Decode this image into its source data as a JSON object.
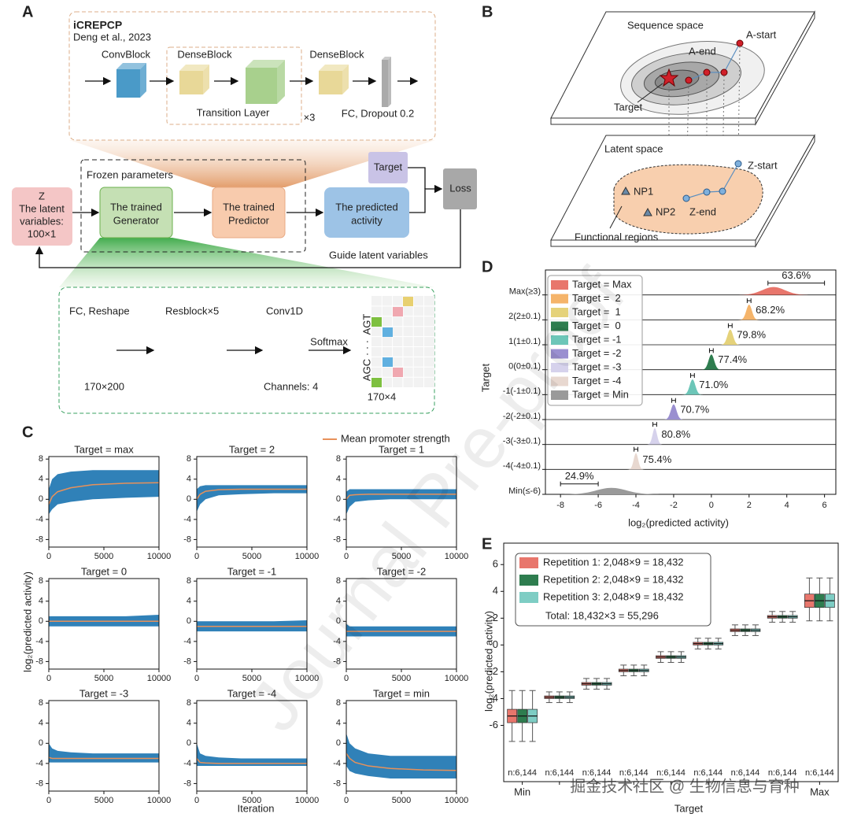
{
  "panel_a": {
    "label": "A",
    "icrepcp": {
      "title": "iCREPCP",
      "citation": "Deng et al., 2023",
      "convblock": "ConvBlock",
      "denseblock_1": "DenseBlock",
      "denseblock_2": "DenseBlock",
      "transition": "Transition Layer",
      "repeat": "×3",
      "fc": "FC, Dropout 0.2"
    },
    "frozen": "Frozen parameters",
    "z": [
      "Z",
      "The latent",
      "variables:",
      "100×1"
    ],
    "generator": [
      "The trained",
      "Generator"
    ],
    "predictor": [
      "The trained",
      "Predictor"
    ],
    "activity": [
      "The predicted",
      "activity"
    ],
    "target": "Target",
    "loss": "Loss",
    "guide": "Guide latent variables",
    "generator_detail": {
      "fc": "FC, Reshape",
      "resblock": "Resblock×5",
      "conv": "Conv1D",
      "softmax": "Softmax",
      "dim_in": "170×200",
      "channels": "Channels: 4",
      "dim_out": "170×4",
      "seq_top": "AGT",
      "seq_bottom": "AGC",
      "ellipsis": "· · ·"
    }
  },
  "panel_b": {
    "label": "B",
    "sequence_space": "Sequence space",
    "a_start": "A-start",
    "a_end": "A-end",
    "target": "Target",
    "latent_space": "Latent space",
    "z_start": "Z-start",
    "z_end": "Z-end",
    "np1": "NP1",
    "np2": "NP2",
    "functional": "Functional regions"
  },
  "panel_c": {
    "label": "C",
    "legend": "Mean promoter strength",
    "mean_color": "#e8915a",
    "band_color": "#1a73b0",
    "ylabel": "log₂(predicted activity)",
    "xlabel": "Iteration",
    "xlim": [
      0,
      10000
    ],
    "xticks": [
      0,
      5000,
      10000
    ],
    "ylim": [
      -9.5,
      8.5
    ],
    "yticks": [
      8,
      4,
      0,
      -4,
      -8
    ],
    "x": [
      0,
      300,
      800,
      2000,
      4000,
      7000,
      10000
    ],
    "charts": [
      {
        "type": "line",
        "title": "Target = max",
        "mean": [
          -1,
          0.5,
          1.5,
          2.3,
          2.9,
          3.2,
          3.3
        ],
        "upper": [
          2,
          4,
          5,
          5.5,
          5.8,
          5.8,
          5.8
        ],
        "lower": [
          -3,
          -2,
          -1,
          -0.5,
          0,
          0.3,
          0.5
        ]
      },
      {
        "type": "line",
        "title": "Target = 2",
        "mean": [
          0,
          1,
          1.6,
          1.9,
          2,
          2,
          2
        ],
        "upper": [
          2,
          2.6,
          2.8,
          2.8,
          2.8,
          2.8,
          2.8
        ],
        "lower": [
          -2.5,
          -1,
          0,
          0.8,
          1,
          1.2,
          1.2
        ]
      },
      {
        "type": "line",
        "title": "Target = 1",
        "mean": [
          0,
          0.8,
          0.9,
          1,
          1,
          1,
          1
        ],
        "upper": [
          1.5,
          2,
          2,
          2,
          2,
          2,
          2
        ],
        "lower": [
          -3,
          -1.5,
          -0.5,
          -0.2,
          0,
          0,
          0
        ]
      },
      {
        "type": "line",
        "title": "Target = 0",
        "mean": [
          0,
          0,
          0,
          0,
          0,
          0,
          0
        ],
        "upper": [
          1,
          1,
          1,
          1,
          1,
          1,
          1.3
        ],
        "lower": [
          -1,
          -1,
          -1,
          -1,
          -1,
          -1,
          -1
        ]
      },
      {
        "type": "line",
        "title": "Target = -1",
        "mean": [
          -1,
          -1,
          -1,
          -1,
          -1,
          -1,
          -1
        ],
        "upper": [
          0,
          0,
          0,
          0,
          0,
          0,
          0.2
        ],
        "lower": [
          -2,
          -2,
          -2,
          -2,
          -2,
          -2,
          -2
        ]
      },
      {
        "type": "line",
        "title": "Target = -2",
        "mean": [
          -2,
          -2,
          -2,
          -2,
          -2,
          -2,
          -2
        ],
        "upper": [
          -0.5,
          -1,
          -1,
          -1,
          -1,
          -1,
          -1
        ],
        "lower": [
          -3,
          -3,
          -3,
          -3,
          -3,
          -3,
          -3
        ]
      },
      {
        "type": "line",
        "title": "Target = -3",
        "mean": [
          -2.8,
          -3,
          -3,
          -3,
          -3,
          -3,
          -3
        ],
        "upper": [
          0,
          -1,
          -1.5,
          -1.8,
          -2,
          -2,
          -2
        ],
        "lower": [
          -3.8,
          -3.8,
          -3.8,
          -3.8,
          -3.8,
          -3.8,
          -3.8
        ]
      },
      {
        "type": "line",
        "title": "Target = -4",
        "mean": [
          -3,
          -3.8,
          -3.9,
          -4,
          -4,
          -4,
          -4
        ],
        "upper": [
          0,
          -2,
          -2.5,
          -2.8,
          -3,
          -3,
          -3
        ],
        "lower": [
          -4.5,
          -4.5,
          -4.5,
          -4.5,
          -4.5,
          -4.5,
          -4.5
        ]
      },
      {
        "type": "line",
        "title": "Target = min",
        "mean": [
          -2,
          -3,
          -3.8,
          -4.5,
          -5,
          -5.3,
          -5.4
        ],
        "upper": [
          2,
          0,
          -1,
          -2,
          -2.5,
          -2.5,
          -2.5
        ],
        "lower": [
          -4.5,
          -5.5,
          -6,
          -6.5,
          -7,
          -7,
          -7
        ]
      }
    ]
  },
  "panel_d": {
    "label": "D",
    "type": "ridge",
    "ylabel": "Target",
    "xlabel": "log₂(predicted activity)",
    "xlim": [
      -8.8,
      6.6
    ],
    "xticks": [
      -8,
      -6,
      -4,
      -2,
      0,
      2,
      4,
      6
    ],
    "categories": [
      "Max(≥3)",
      "2(2±0.1)",
      "1(1±0.1)",
      "0(0±0.1)",
      "-1(-1±0.1)",
      "-2(-2±0.1)",
      "-3(-3±0.1)",
      "-4(-4±0.1)",
      "Min(≤-6)"
    ],
    "legend": [
      "Target = Max",
      "Target =  2",
      "Target =  1",
      "Target =  0",
      "Target = -1",
      "Target = -2",
      "Target = -3",
      "Target = -4",
      "Target = Min"
    ],
    "colors": [
      "#e8766c",
      "#f5b46a",
      "#e5d27a",
      "#2e7d4f",
      "#6cc6b8",
      "#9a8fd0",
      "#d6d2ec",
      "#e8d8d0",
      "#9a9a9a"
    ],
    "centers": [
      3.3,
      2,
      1,
      0,
      -1,
      -2,
      -3,
      -4,
      -5.3
    ],
    "spreads": [
      0.6,
      0.15,
      0.15,
      0.15,
      0.15,
      0.15,
      0.12,
      0.12,
      0.8
    ],
    "intervals": [
      [
        3,
        6
      ],
      [
        1.9,
        2.1
      ],
      [
        0.9,
        1.1
      ],
      [
        -0.1,
        0.1
      ],
      [
        -1.1,
        -0.9
      ],
      [
        -2.1,
        -1.9
      ],
      [
        -3.1,
        -2.9
      ],
      [
        -4.1,
        -3.9
      ],
      [
        -8,
        -6
      ]
    ],
    "percent_labels": [
      "63.6%",
      "68.2%",
      "79.8%",
      "77.4%",
      "71.0%",
      "70.7%",
      "80.8%",
      "75.4%",
      "24.9%"
    ]
  },
  "panel_e": {
    "label": "E",
    "type": "box",
    "ylabel": "log₂(predicted activity)",
    "xlabel": "Target",
    "categories": [
      "Min",
      null,
      null,
      null,
      null,
      null,
      null,
      null,
      "Max"
    ],
    "ylim": [
      -10.2,
      7.6
    ],
    "yticks": [
      6,
      4,
      2,
      0,
      -2,
      -4,
      -6
    ],
    "n_labels": [
      "n:6,144",
      "n:6,144",
      "n:6,144",
      "n:6,144",
      "n:6,144",
      "n:6,144",
      "n:6,144",
      "n:6,144",
      "n:6,144"
    ],
    "total": "Total: 18,432×3 = 55,296",
    "series": [
      {
        "name": "Repetition 1: 2,048×9 = 18,432",
        "color": "#e8766c",
        "median": [
          -5.3,
          -3.9,
          -2.9,
          -1.9,
          -0.9,
          0.1,
          1.1,
          2.1,
          3.3
        ],
        "q1": [
          -5.8,
          -4.0,
          -3.0,
          -2.0,
          -1.0,
          0.0,
          1.0,
          2.0,
          2.8
        ],
        "q3": [
          -4.8,
          -3.8,
          -2.8,
          -1.8,
          -0.8,
          0.2,
          1.2,
          2.2,
          3.8
        ],
        "whisker_low": [
          -7.2,
          -4.3,
          -3.3,
          -2.3,
          -1.3,
          -0.3,
          0.7,
          1.7,
          1.8
        ],
        "whisker_high": [
          -3.4,
          -3.5,
          -2.5,
          -1.5,
          -0.5,
          0.5,
          1.5,
          2.5,
          5.0
        ]
      },
      {
        "name": "Repetition 2: 2,048×9 = 18,432",
        "color": "#2e7d4f",
        "median": [
          -5.3,
          -3.9,
          -2.9,
          -1.9,
          -0.9,
          0.1,
          1.1,
          2.1,
          3.3
        ],
        "q1": [
          -5.8,
          -4.0,
          -3.0,
          -2.0,
          -1.0,
          0.0,
          1.0,
          2.0,
          2.8
        ],
        "q3": [
          -4.8,
          -3.8,
          -2.8,
          -1.8,
          -0.8,
          0.2,
          1.2,
          2.2,
          3.8
        ],
        "whisker_low": [
          -7.2,
          -4.3,
          -3.3,
          -2.3,
          -1.3,
          -0.3,
          0.7,
          1.7,
          1.8
        ],
        "whisker_high": [
          -3.4,
          -3.5,
          -2.5,
          -1.5,
          -0.5,
          0.5,
          1.5,
          2.5,
          5.0
        ]
      },
      {
        "name": "Repetition 3: 2,048×9 = 18,432",
        "color": "#7ecdc4",
        "median": [
          -5.3,
          -3.9,
          -2.9,
          -1.9,
          -0.9,
          0.1,
          1.1,
          2.1,
          3.3
        ],
        "q1": [
          -5.8,
          -4.0,
          -3.0,
          -2.0,
          -1.0,
          0.0,
          1.0,
          2.0,
          2.8
        ],
        "q3": [
          -4.8,
          -3.8,
          -2.8,
          -1.8,
          -0.8,
          0.2,
          1.2,
          2.2,
          3.8
        ],
        "whisker_low": [
          -7.2,
          -4.3,
          -3.3,
          -2.3,
          -1.3,
          -0.3,
          0.7,
          1.7,
          1.8
        ],
        "whisker_high": [
          -3.4,
          -3.5,
          -2.5,
          -1.5,
          -0.5,
          0.5,
          1.5,
          2.5,
          5.0
        ]
      }
    ]
  },
  "watermark": "Journal Pre-proof",
  "source_watermark": "掘金技术社区 @ 生物信息与育种"
}
